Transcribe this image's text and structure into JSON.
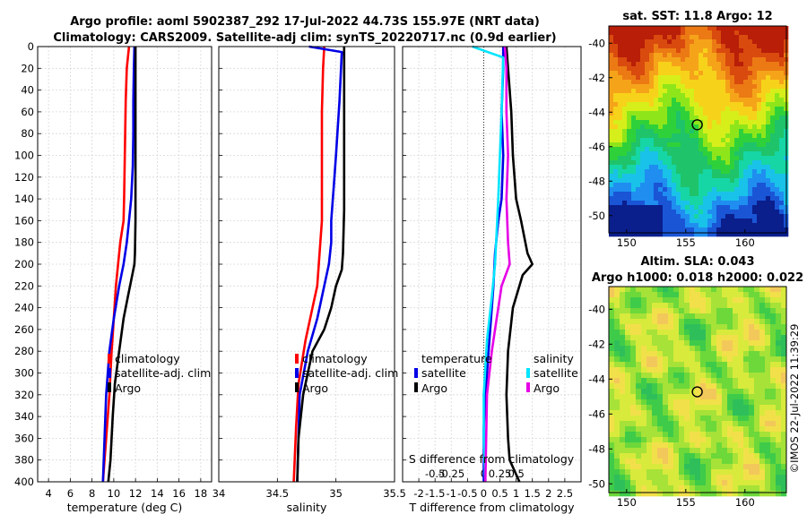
{
  "title": {
    "line1": "Argo profile: aoml 5902387_292 17-Jul-2022 44.73S 155.97E (NRT data)",
    "line2": "Climatology: CARS2009. Satellite-adj clim: synTS_20220717.nc (0.9d earlier)"
  },
  "watermark": "©IMOS 22-Jul-2022 11:39:29",
  "colors": {
    "red": "#ff0000",
    "blue": "#0000e6",
    "black": "#000000",
    "cyan": "#00e5ff",
    "magenta": "#e600e6"
  },
  "chart_data": [
    {
      "type": "line",
      "id": "temperature",
      "xlabel": "temperature (deg C)",
      "xlim": [
        3,
        19
      ],
      "ylim": [
        0,
        400
      ],
      "xticks": [
        4,
        6,
        8,
        10,
        12,
        14,
        16,
        18
      ],
      "yticks": [
        0,
        20,
        40,
        60,
        80,
        100,
        120,
        140,
        160,
        180,
        200,
        220,
        240,
        260,
        280,
        300,
        320,
        340,
        360,
        380,
        400
      ],
      "grid": true,
      "legend": [
        "climatology",
        "satellite-adj. clim",
        "Argo"
      ],
      "series": [
        {
          "name": "climatology",
          "color": "red",
          "x": [
            11.4,
            11.2,
            11.1,
            11.05,
            11.0,
            10.95,
            10.9,
            10.6,
            10.4,
            10.2,
            10.0,
            9.8,
            9.6,
            9.3,
            9.0
          ],
          "y": [
            0,
            20,
            50,
            80,
            110,
            140,
            160,
            180,
            200,
            220,
            250,
            280,
            320,
            360,
            400
          ]
        },
        {
          "name": "satellite-adj. clim",
          "color": "blue",
          "x": [
            11.9,
            11.85,
            11.8,
            11.8,
            11.75,
            11.6,
            11.4,
            11.2,
            10.9,
            10.5,
            10.0,
            9.6,
            9.3,
            9.0
          ],
          "y": [
            0,
            20,
            50,
            80,
            110,
            140,
            160,
            180,
            200,
            220,
            250,
            280,
            320,
            400
          ]
        },
        {
          "name": "Argo",
          "color": "black",
          "x": [
            12.0,
            12.0,
            12.0,
            12.0,
            12.0,
            11.95,
            11.9,
            11.7,
            11.3,
            10.9,
            10.5,
            10.1,
            9.9,
            9.7,
            9.5
          ],
          "y": [
            0,
            40,
            80,
            120,
            160,
            190,
            200,
            210,
            230,
            250,
            280,
            310,
            340,
            380,
            400
          ]
        }
      ]
    },
    {
      "type": "line",
      "id": "salinity",
      "xlabel": "salinity",
      "xlim": [
        34,
        35.5
      ],
      "ylim": [
        0,
        400
      ],
      "xticks": [
        34,
        34.5,
        35,
        35.5
      ],
      "xticklabels": [
        "34",
        "34.5",
        "35",
        "35.5"
      ],
      "grid": true,
      "legend": [
        "climatology",
        "satellite-adj. clim",
        "Argo"
      ],
      "series": [
        {
          "name": "climatology",
          "color": "red",
          "x": [
            34.9,
            34.89,
            34.88,
            34.88,
            34.88,
            34.88,
            34.86,
            34.84,
            34.8,
            34.74,
            34.68,
            34.66,
            34.64
          ],
          "y": [
            0,
            20,
            60,
            100,
            140,
            160,
            190,
            220,
            240,
            270,
            310,
            350,
            400
          ]
        },
        {
          "name": "satellite-adj. clim",
          "color": "blue",
          "x": [
            34.77,
            35.05,
            35.03,
            35.0,
            34.98,
            34.96,
            34.96,
            34.94,
            34.9,
            34.84,
            34.76,
            34.69,
            34.67
          ],
          "y": [
            0,
            5,
            50,
            100,
            130,
            160,
            180,
            200,
            220,
            250,
            280,
            320,
            400
          ]
        },
        {
          "name": "Argo",
          "color": "black",
          "x": [
            35.07,
            35.07,
            35.07,
            35.07,
            35.06,
            35.05,
            35.0,
            34.96,
            34.9,
            34.8,
            34.72,
            34.68,
            34.67
          ],
          "y": [
            0,
            50,
            100,
            150,
            190,
            205,
            220,
            240,
            260,
            280,
            320,
            360,
            400
          ]
        }
      ]
    },
    {
      "type": "line",
      "id": "difference",
      "xlabel": "T difference from climatology",
      "xlabel2": "S difference from climatology",
      "xlim": [
        -2.5,
        3
      ],
      "ylim": [
        0,
        400
      ],
      "xticks": [
        -2,
        -1.5,
        -1,
        -0.5,
        0,
        0.5,
        1,
        1.5,
        2,
        2.5
      ],
      "xticklabels": [
        "-2",
        "-1.5",
        "-1",
        "-0.5",
        "0",
        "0.5",
        "1",
        "1.5",
        "2",
        "2.5"
      ],
      "sticks_pos": [
        -1.5,
        -1,
        0,
        0.5,
        1.0
      ],
      "sticks": [
        "-0.5",
        "-0.25",
        "0",
        "0.25",
        "0.5"
      ],
      "grid": true,
      "legend": {
        "left_header": "temperature",
        "right_header": "salinity",
        "left": [
          "satellite",
          "Argo"
        ],
        "right": [
          "satellite",
          "Argo"
        ]
      },
      "series": [
        {
          "name": "T satellite",
          "color": "blue",
          "x": [
            0.6,
            0.6,
            0.55,
            0.6,
            0.55,
            0.45,
            0.35,
            0.3,
            0.2,
            0.1,
            0.0,
            0.0
          ],
          "y": [
            0,
            20,
            60,
            100,
            140,
            160,
            190,
            220,
            260,
            300,
            350,
            400
          ]
        },
        {
          "name": "T Argo",
          "color": "black",
          "x": [
            0.7,
            0.75,
            0.85,
            0.9,
            1.0,
            1.15,
            1.35,
            1.5,
            1.2,
            0.9,
            0.75,
            0.7,
            0.75,
            0.8,
            1.1
          ],
          "y": [
            0,
            20,
            60,
            100,
            140,
            160,
            190,
            200,
            210,
            240,
            280,
            320,
            360,
            380,
            400
          ]
        },
        {
          "name": "S satellite",
          "color": "cyan",
          "x": [
            -0.35,
            0.6,
            0.55,
            0.5,
            0.45,
            0.4,
            0.35,
            0.25,
            0.1,
            0.0,
            0.0,
            0.05
          ],
          "y": [
            0,
            10,
            60,
            100,
            140,
            170,
            200,
            230,
            270,
            320,
            360,
            400
          ]
        },
        {
          "name": "S Argo",
          "color": "magenta",
          "x": [
            0.65,
            0.7,
            0.7,
            0.75,
            0.7,
            0.75,
            0.8,
            0.55,
            0.4,
            0.25,
            0.1,
            0.05
          ],
          "y": [
            0,
            20,
            60,
            100,
            140,
            180,
            200,
            220,
            250,
            280,
            320,
            400
          ]
        }
      ]
    },
    {
      "type": "heatmap",
      "id": "sst-map",
      "title": "sat. SST: 11.8 Argo: 12",
      "xlim": [
        148.5,
        163.5
      ],
      "ylim": [
        -51,
        -39
      ],
      "xticks": [
        150,
        155,
        160
      ],
      "yticks": [
        -40,
        -42,
        -44,
        -46,
        -48,
        -50
      ],
      "marker": {
        "lon": 155.97,
        "lat": -44.73
      }
    },
    {
      "type": "heatmap",
      "id": "sla-map",
      "title": "Altim. SLA: 0.043",
      "subtitle": "Argo h1000: 0.018 h2000: 0.022",
      "xlim": [
        148.5,
        163.5
      ],
      "ylim": [
        -50.5,
        -38.7
      ],
      "xticks": [
        150,
        155,
        160
      ],
      "yticks": [
        -40,
        -42,
        -44,
        -46,
        -48,
        -50
      ],
      "marker": {
        "lon": 155.97,
        "lat": -44.73
      }
    }
  ]
}
